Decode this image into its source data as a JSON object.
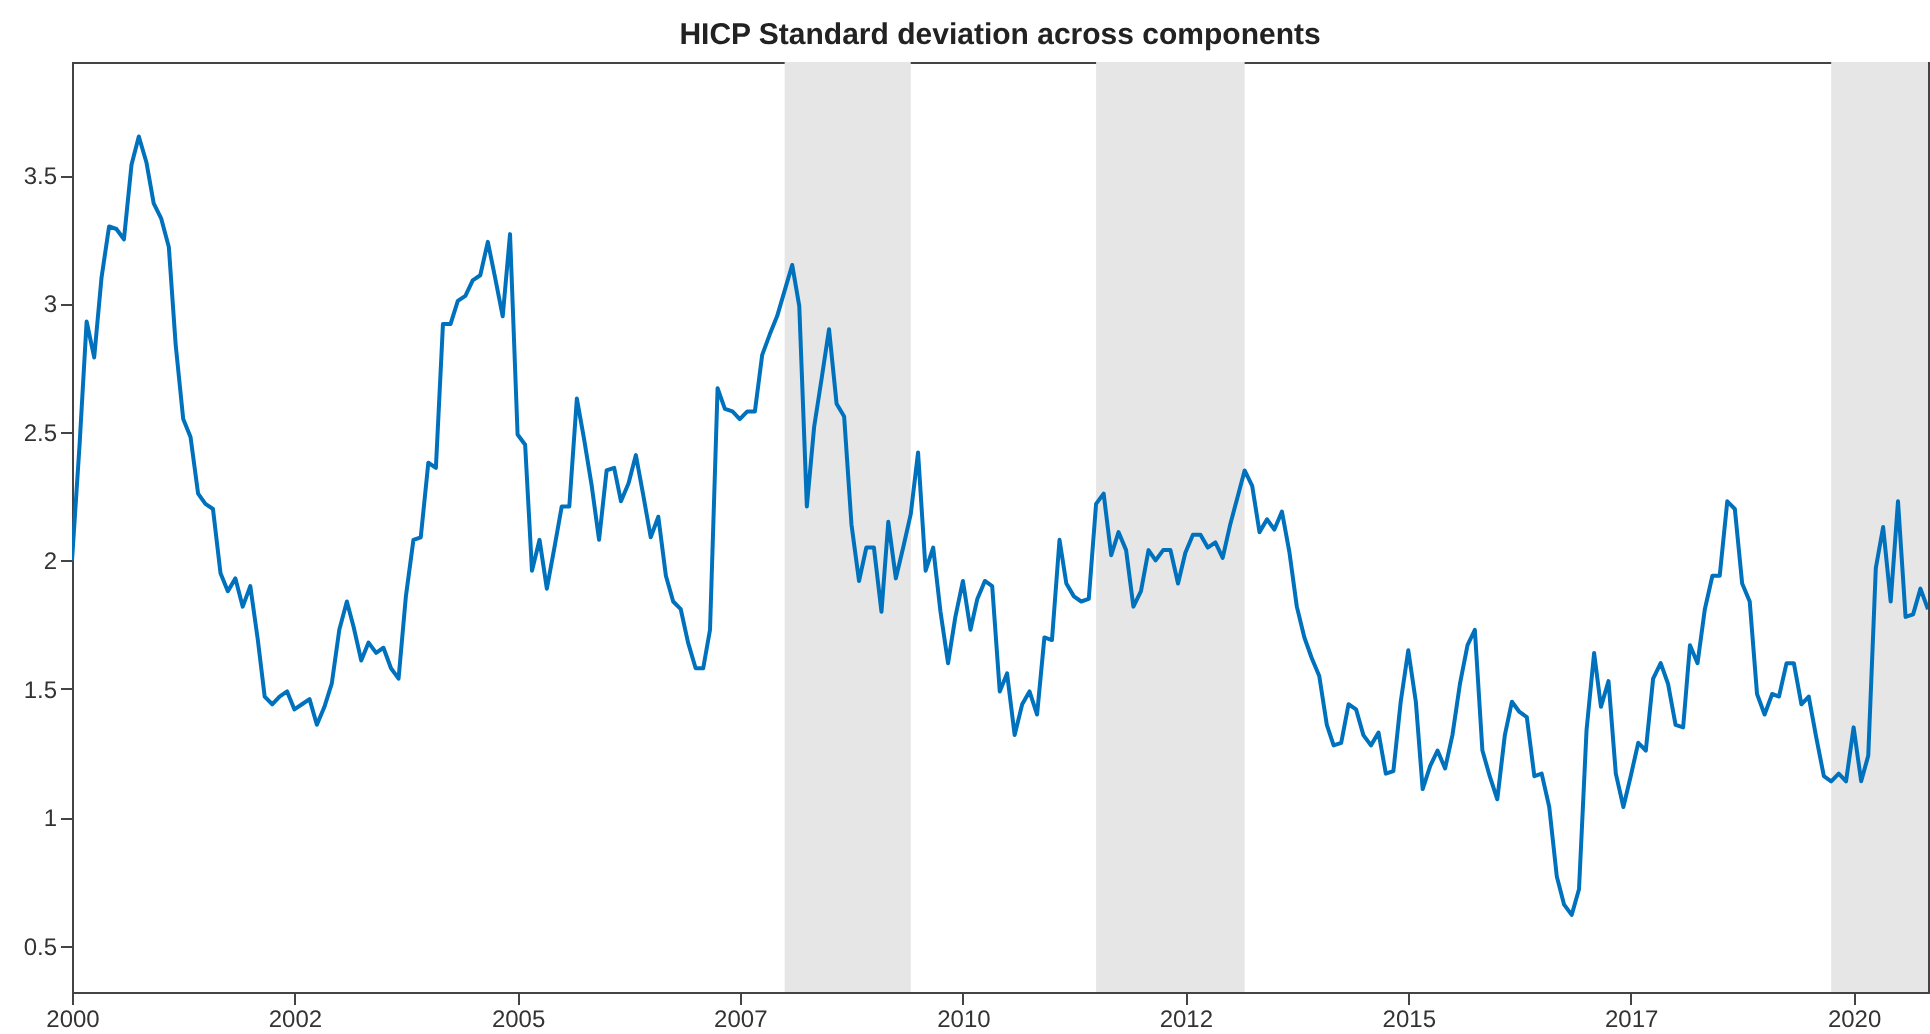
{
  "chart_data": {
    "type": "line",
    "title": "HICP Standard deviation across components",
    "x": [
      "2000-01",
      "2000-02",
      "2000-03",
      "2000-04",
      "2000-05",
      "2000-06",
      "2000-07",
      "2000-08",
      "2000-09",
      "2000-10",
      "2000-11",
      "2000-12",
      "2001-01",
      "2001-02",
      "2001-03",
      "2001-04",
      "2001-05",
      "2001-06",
      "2001-07",
      "2001-08",
      "2001-09",
      "2001-10",
      "2001-11",
      "2001-12",
      "2002-01",
      "2002-02",
      "2002-03",
      "2002-04",
      "2002-05",
      "2002-06",
      "2002-07",
      "2002-08",
      "2002-09",
      "2002-10",
      "2002-11",
      "2002-12",
      "2003-01",
      "2003-02",
      "2003-03",
      "2003-04",
      "2003-05",
      "2003-06",
      "2003-07",
      "2003-08",
      "2003-09",
      "2003-10",
      "2003-11",
      "2003-12",
      "2004-01",
      "2004-02",
      "2004-03",
      "2004-04",
      "2004-05",
      "2004-06",
      "2004-07",
      "2004-08",
      "2004-09",
      "2004-10",
      "2004-11",
      "2004-12",
      "2005-01",
      "2005-02",
      "2005-03",
      "2005-04",
      "2005-05",
      "2005-06",
      "2005-07",
      "2005-08",
      "2005-09",
      "2005-10",
      "2005-11",
      "2005-12",
      "2006-01",
      "2006-02",
      "2006-03",
      "2006-04",
      "2006-05",
      "2006-06",
      "2006-07",
      "2006-08",
      "2006-09",
      "2006-10",
      "2006-11",
      "2006-12",
      "2007-01",
      "2007-02",
      "2007-03",
      "2007-04",
      "2007-05",
      "2007-06",
      "2007-07",
      "2007-08",
      "2007-09",
      "2007-10",
      "2007-11",
      "2007-12",
      "2008-01",
      "2008-02",
      "2008-03",
      "2008-04",
      "2008-05",
      "2008-06",
      "2008-07",
      "2008-08",
      "2008-09",
      "2008-10",
      "2008-11",
      "2008-12",
      "2009-01",
      "2009-02",
      "2009-03",
      "2009-04",
      "2009-05",
      "2009-06",
      "2009-07",
      "2009-08",
      "2009-09",
      "2009-10",
      "2009-11",
      "2009-12",
      "2010-01",
      "2010-02",
      "2010-03",
      "2010-04",
      "2010-05",
      "2010-06",
      "2010-07",
      "2010-08",
      "2010-09",
      "2010-10",
      "2010-11",
      "2010-12",
      "2011-01",
      "2011-02",
      "2011-03",
      "2011-04",
      "2011-05",
      "2011-06",
      "2011-07",
      "2011-08",
      "2011-09",
      "2011-10",
      "2011-11",
      "2011-12",
      "2012-01",
      "2012-02",
      "2012-03",
      "2012-04",
      "2012-05",
      "2012-06",
      "2012-07",
      "2012-08",
      "2012-09",
      "2012-10",
      "2012-11",
      "2012-12",
      "2013-01",
      "2013-02",
      "2013-03",
      "2013-04",
      "2013-05",
      "2013-06",
      "2013-07",
      "2013-08",
      "2013-09",
      "2013-10",
      "2013-11",
      "2013-12",
      "2014-01",
      "2014-02",
      "2014-03",
      "2014-04",
      "2014-05",
      "2014-06",
      "2014-07",
      "2014-08",
      "2014-09",
      "2014-10",
      "2014-11",
      "2014-12",
      "2015-01",
      "2015-02",
      "2015-03",
      "2015-04",
      "2015-05",
      "2015-06",
      "2015-07",
      "2015-08",
      "2015-09",
      "2015-10",
      "2015-11",
      "2015-12",
      "2016-01",
      "2016-02",
      "2016-03",
      "2016-04",
      "2016-05",
      "2016-06",
      "2016-07",
      "2016-08",
      "2016-09",
      "2016-10",
      "2016-11",
      "2016-12",
      "2017-01",
      "2017-02",
      "2017-03",
      "2017-04",
      "2017-05",
      "2017-06",
      "2017-07",
      "2017-08",
      "2017-09",
      "2017-10",
      "2017-11",
      "2017-12",
      "2018-01",
      "2018-02",
      "2018-03",
      "2018-04",
      "2018-05",
      "2018-06",
      "2018-07",
      "2018-08",
      "2018-09",
      "2018-10",
      "2018-11",
      "2018-12",
      "2019-01",
      "2019-02",
      "2019-03",
      "2019-04",
      "2019-05",
      "2019-06",
      "2019-07",
      "2019-08",
      "2019-09",
      "2019-10",
      "2019-11",
      "2019-12",
      "2020-01",
      "2020-02",
      "2020-03",
      "2020-04",
      "2020-05",
      "2020-06",
      "2020-07",
      "2020-08",
      "2020-09",
      "2020-10",
      "2020-11"
    ],
    "series": [
      {
        "color": "#0072bd",
        "values": [
          2.0,
          2.45,
          2.93,
          2.79,
          3.1,
          3.3,
          3.29,
          3.25,
          3.54,
          3.65,
          3.55,
          3.39,
          3.33,
          3.22,
          2.84,
          2.55,
          2.48,
          2.26,
          2.22,
          2.2,
          1.95,
          1.88,
          1.93,
          1.82,
          1.9,
          1.69,
          1.47,
          1.44,
          1.47,
          1.49,
          1.42,
          1.44,
          1.46,
          1.36,
          1.43,
          1.52,
          1.73,
          1.84,
          1.74,
          1.61,
          1.68,
          1.64,
          1.66,
          1.58,
          1.54,
          1.86,
          2.08,
          2.09,
          2.38,
          2.36,
          2.92,
          2.92,
          3.01,
          3.03,
          3.09,
          3.11,
          3.24,
          3.1,
          2.95,
          3.27,
          2.49,
          2.45,
          1.96,
          2.08,
          1.89,
          2.05,
          2.21,
          2.21,
          2.63,
          2.47,
          2.29,
          2.08,
          2.35,
          2.36,
          2.23,
          2.3,
          2.41,
          2.25,
          2.09,
          2.17,
          1.94,
          1.84,
          1.81,
          1.68,
          1.58,
          1.58,
          1.73,
          2.67,
          2.59,
          2.58,
          2.55,
          2.58,
          2.58,
          2.8,
          2.88,
          2.95,
          3.05,
          3.15,
          2.99,
          2.21,
          2.52,
          2.71,
          2.9,
          2.61,
          2.56,
          2.14,
          1.92,
          2.05,
          2.05,
          1.8,
          2.15,
          1.93,
          2.05,
          2.18,
          2.42,
          1.96,
          2.05,
          1.8,
          1.6,
          1.78,
          1.92,
          1.73,
          1.85,
          1.92,
          1.9,
          1.49,
          1.56,
          1.32,
          1.44,
          1.49,
          1.4,
          1.7,
          1.69,
          2.08,
          1.91,
          1.86,
          1.84,
          1.85,
          2.22,
          2.26,
          2.02,
          2.11,
          2.04,
          1.82,
          1.88,
          2.04,
          2.0,
          2.04,
          2.04,
          1.91,
          2.03,
          2.1,
          2.1,
          2.05,
          2.07,
          2.01,
          2.14,
          2.25,
          2.35,
          2.29,
          2.11,
          2.16,
          2.12,
          2.19,
          2.03,
          1.82,
          1.7,
          1.62,
          1.55,
          1.36,
          1.28,
          1.29,
          1.44,
          1.42,
          1.32,
          1.28,
          1.33,
          1.17,
          1.18,
          1.45,
          1.65,
          1.45,
          1.11,
          1.2,
          1.26,
          1.19,
          1.32,
          1.52,
          1.67,
          1.73,
          1.26,
          1.16,
          1.07,
          1.32,
          1.45,
          1.41,
          1.39,
          1.16,
          1.17,
          1.04,
          0.77,
          0.66,
          0.62,
          0.72,
          1.34,
          1.64,
          1.43,
          1.53,
          1.17,
          1.04,
          1.16,
          1.29,
          1.26,
          1.54,
          1.6,
          1.52,
          1.36,
          1.35,
          1.67,
          1.6,
          1.81,
          1.94,
          1.94,
          2.23,
          2.2,
          1.91,
          1.84,
          1.48,
          1.4,
          1.48,
          1.47,
          1.6,
          1.6,
          1.44,
          1.47,
          1.31,
          1.16,
          1.14,
          1.17,
          1.14,
          1.35,
          1.14,
          1.24,
          1.97,
          2.13,
          1.84,
          2.23,
          1.78,
          1.79,
          1.89,
          1.81
        ]
      }
    ],
    "xlim": [
      "2000-01",
      "2020-11"
    ],
    "xticks": [
      {
        "value": "2000-01",
        "label": "2000"
      },
      {
        "value": "2002-07",
        "label": "2002"
      },
      {
        "value": "2005-01",
        "label": "2005"
      },
      {
        "value": "2007-07",
        "label": "2007"
      },
      {
        "value": "2010-01",
        "label": "2010"
      },
      {
        "value": "2012-07",
        "label": "2012"
      },
      {
        "value": "2015-01",
        "label": "2015"
      },
      {
        "value": "2017-07",
        "label": "2017"
      },
      {
        "value": "2020-01",
        "label": "2020"
      }
    ],
    "ylim": [
      0.32,
      3.94
    ],
    "yticks": [
      0.5,
      1,
      1.5,
      2,
      2.5,
      3,
      3.5
    ],
    "bands": [
      {
        "axis": "x",
        "from": "2008-01",
        "to": "2009-06",
        "color": "#e6e6e6"
      },
      {
        "axis": "x",
        "from": "2011-07",
        "to": "2013-03",
        "color": "#e6e6e6"
      },
      {
        "axis": "x",
        "from": "2019-10",
        "to": "2020-11",
        "color": "#e6e6e6"
      }
    ],
    "grid": false,
    "marker": "none",
    "line_style": "solid"
  }
}
